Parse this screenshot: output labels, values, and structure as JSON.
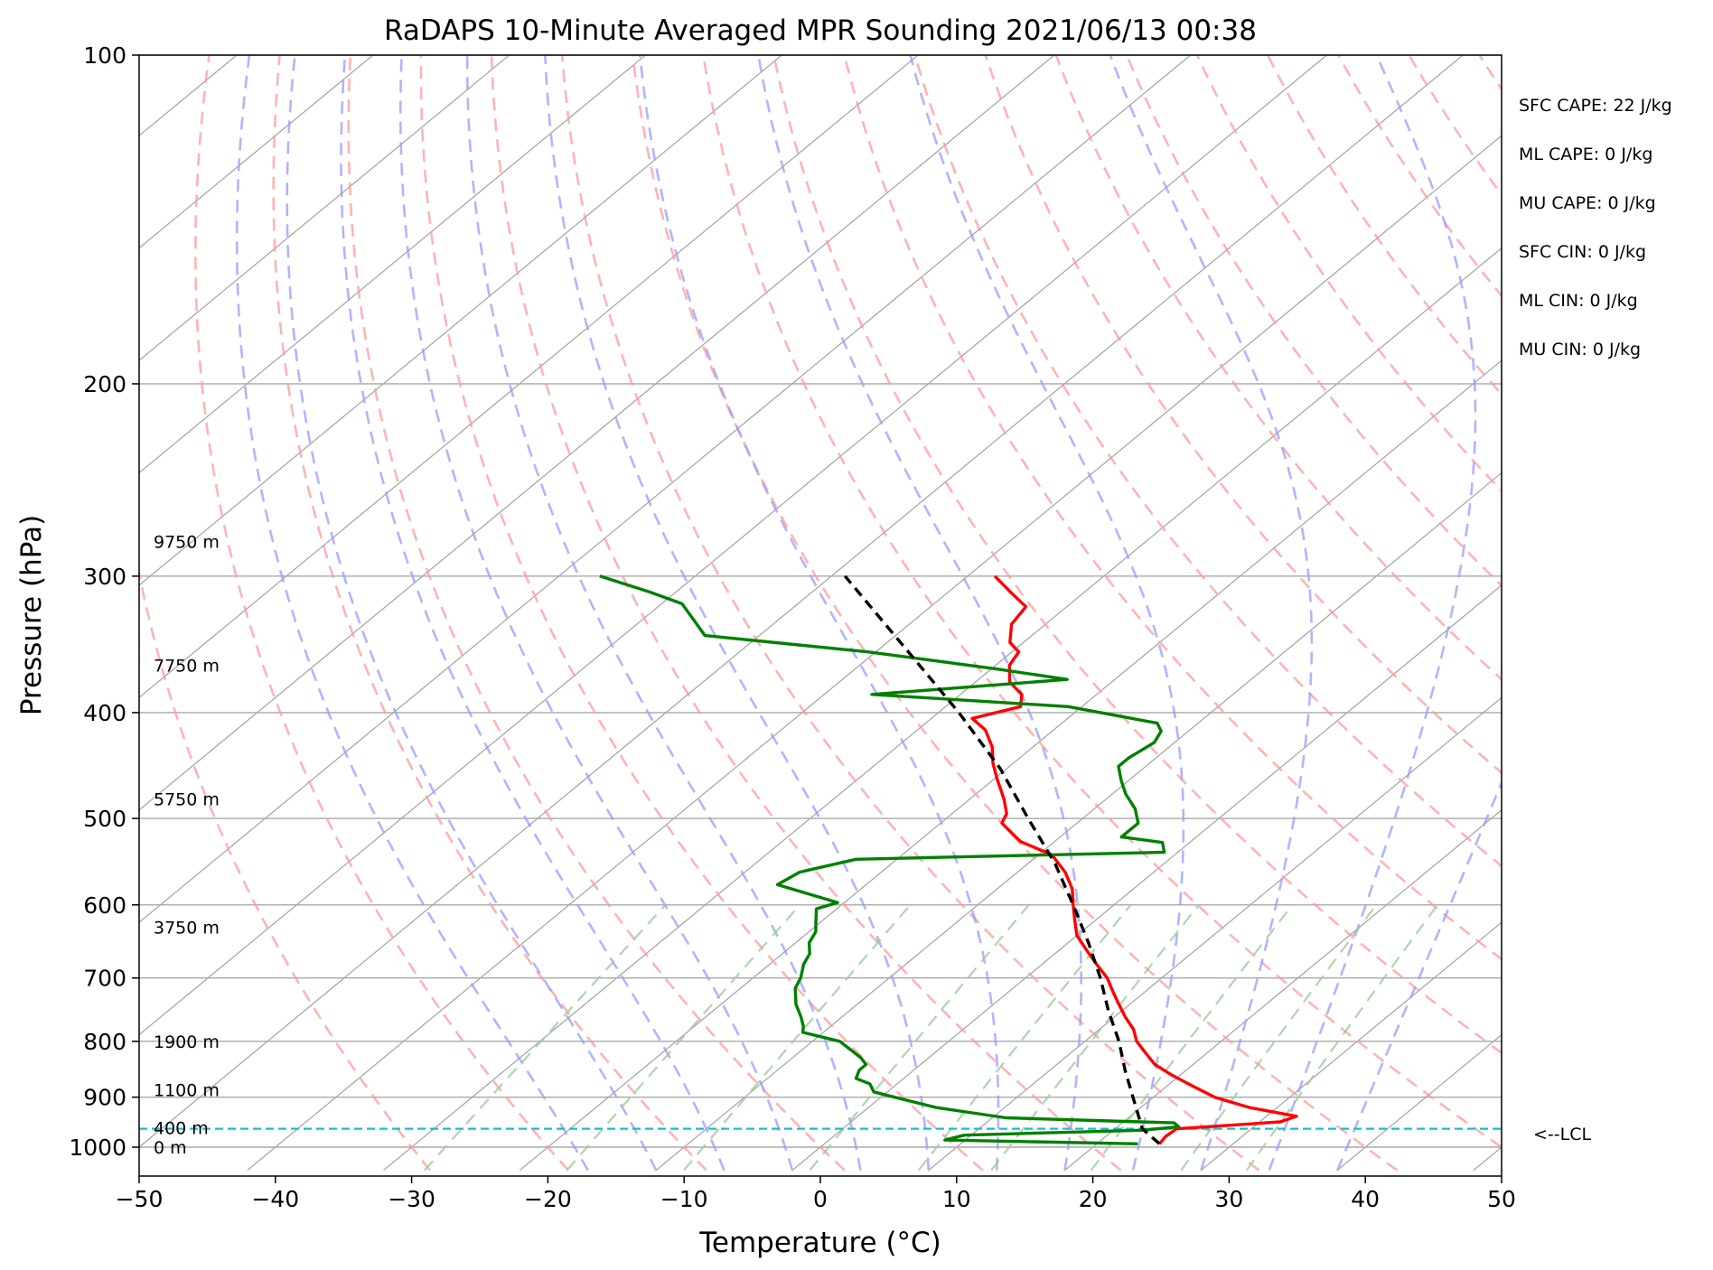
{
  "chart_data": {
    "type": "line",
    "title": "RaDAPS 10-Minute Averaged MPR Sounding 2021/06/13 00:38",
    "xlabel": "Temperature (°C)",
    "ylabel": "Pressure (hPa)",
    "xlim": [
      -50,
      50
    ],
    "ylim": [
      1050,
      100
    ],
    "y_scale": "log",
    "skew": true,
    "grid": true,
    "x_ticks": [
      -50,
      -40,
      -30,
      -20,
      -10,
      0,
      10,
      20,
      30,
      40,
      50
    ],
    "x_tick_labels": [
      "−50",
      "−40",
      "−30",
      "−20",
      "−10",
      "0",
      "10",
      "20",
      "30",
      "40",
      "50"
    ],
    "y_ticks": [
      100,
      200,
      300,
      400,
      500,
      600,
      700,
      800,
      900,
      1000
    ],
    "y_tick_labels": [
      "100",
      "200",
      "300",
      "400",
      "500",
      "600",
      "700",
      "800",
      "900",
      "1000"
    ],
    "height_labels": [
      {
        "text": "9750 m",
        "p": 279
      },
      {
        "text": "7750 m",
        "p": 362
      },
      {
        "text": "5750 m",
        "p": 480
      },
      {
        "text": "3750 m",
        "p": 629
      },
      {
        "text": "1900 m",
        "p": 800
      },
      {
        "text": "1100 m",
        "p": 886
      },
      {
        "text": "400 m",
        "p": 960
      },
      {
        "text": "0 m",
        "p": 1000
      }
    ],
    "lcl": {
      "p": 962,
      "label": "<--LCL",
      "color": "#17becf"
    },
    "colors": {
      "temperature": "#ff0000",
      "dewpoint": "#008000",
      "parcel": "#000000",
      "dry_adiabat": "#ff9a9a",
      "moist_adiabat": "#9a9aff",
      "mixing_ratio": "#99cc99",
      "grid": "#a8a8a8"
    },
    "series": [
      {
        "role": "temperature",
        "points": [
          {
            "p": 993,
            "t": 24.6
          },
          {
            "p": 978,
            "t": 24.4
          },
          {
            "p": 962,
            "t": 24.5
          },
          {
            "p": 948,
            "t": 31.5
          },
          {
            "p": 937,
            "t": 32.2
          },
          {
            "p": 920,
            "t": 28.0
          },
          {
            "p": 900,
            "t": 24.5
          },
          {
            "p": 880,
            "t": 22.0
          },
          {
            "p": 860,
            "t": 19.5
          },
          {
            "p": 840,
            "t": 17.2
          },
          {
            "p": 820,
            "t": 15.5
          },
          {
            "p": 800,
            "t": 13.8
          },
          {
            "p": 780,
            "t": 12.5
          },
          {
            "p": 760,
            "t": 10.8
          },
          {
            "p": 740,
            "t": 9.2
          },
          {
            "p": 720,
            "t": 7.6
          },
          {
            "p": 700,
            "t": 6.0
          },
          {
            "p": 680,
            "t": 4.0
          },
          {
            "p": 660,
            "t": 2.0
          },
          {
            "p": 640,
            "t": 0.0
          },
          {
            "p": 620,
            "t": -1.5
          },
          {
            "p": 600,
            "t": -3.0
          },
          {
            "p": 580,
            "t": -4.5
          },
          {
            "p": 560,
            "t": -6.5
          },
          {
            "p": 540,
            "t": -9.0
          },
          {
            "p": 525,
            "t": -12.5
          },
          {
            "p": 515,
            "t": -14.0
          },
          {
            "p": 505,
            "t": -15.5
          },
          {
            "p": 495,
            "t": -16.0
          },
          {
            "p": 480,
            "t": -17.5
          },
          {
            "p": 460,
            "t": -19.8
          },
          {
            "p": 445,
            "t": -21.5
          },
          {
            "p": 430,
            "t": -23.0
          },
          {
            "p": 415,
            "t": -25.0
          },
          {
            "p": 405,
            "t": -27.0
          },
          {
            "p": 395,
            "t": -24.5
          },
          {
            "p": 385,
            "t": -25.5
          },
          {
            "p": 375,
            "t": -27.5
          },
          {
            "p": 362,
            "t": -29.0
          },
          {
            "p": 352,
            "t": -29.5
          },
          {
            "p": 345,
            "t": -31.0
          },
          {
            "p": 332,
            "t": -32.5
          },
          {
            "p": 320,
            "t": -33.0
          },
          {
            "p": 310,
            "t": -35.5
          },
          {
            "p": 300,
            "t": -38.0
          }
        ]
      },
      {
        "role": "dewpoint",
        "points": [
          {
            "p": 993,
            "t": 23.0
          },
          {
            "p": 985,
            "t": 8.5
          },
          {
            "p": 975,
            "t": 9.5
          },
          {
            "p": 965,
            "t": 22.0
          },
          {
            "p": 958,
            "t": 24.5
          },
          {
            "p": 950,
            "t": 23.8
          },
          {
            "p": 940,
            "t": 11.0
          },
          {
            "p": 920,
            "t": 5.0
          },
          {
            "p": 900,
            "t": 1.0
          },
          {
            "p": 890,
            "t": -1.0
          },
          {
            "p": 875,
            "t": -2.0
          },
          {
            "p": 865,
            "t": -3.5
          },
          {
            "p": 850,
            "t": -4.0
          },
          {
            "p": 840,
            "t": -4.0
          },
          {
            "p": 828,
            "t": -5.0
          },
          {
            "p": 800,
            "t": -8.0
          },
          {
            "p": 785,
            "t": -11.5
          },
          {
            "p": 775,
            "t": -12.0
          },
          {
            "p": 760,
            "t": -13.0
          },
          {
            "p": 740,
            "t": -14.5
          },
          {
            "p": 715,
            "t": -16.0
          },
          {
            "p": 700,
            "t": -16.5
          },
          {
            "p": 680,
            "t": -17.5
          },
          {
            "p": 665,
            "t": -18.0
          },
          {
            "p": 650,
            "t": -19.0
          },
          {
            "p": 635,
            "t": -19.5
          },
          {
            "p": 620,
            "t": -20.5
          },
          {
            "p": 605,
            "t": -21.5
          },
          {
            "p": 597,
            "t": -20.5
          },
          {
            "p": 575,
            "t": -26.5
          },
          {
            "p": 560,
            "t": -26.0
          },
          {
            "p": 545,
            "t": -23.0
          },
          {
            "p": 537,
            "t": -1.0
          },
          {
            "p": 526,
            "t": -2.0
          },
          {
            "p": 520,
            "t": -5.5
          },
          {
            "p": 505,
            "t": -5.5
          },
          {
            "p": 490,
            "t": -7.0
          },
          {
            "p": 475,
            "t": -9.0
          },
          {
            "p": 462,
            "t": -10.5
          },
          {
            "p": 448,
            "t": -12.0
          },
          {
            "p": 440,
            "t": -12.0
          },
          {
            "p": 426,
            "t": -11.5
          },
          {
            "p": 416,
            "t": -12.0
          },
          {
            "p": 409,
            "t": -13.0
          },
          {
            "p": 395,
            "t": -21.0
          },
          {
            "p": 385,
            "t": -36.5
          },
          {
            "p": 373,
            "t": -23.5
          },
          {
            "p": 365,
            "t": -29.5
          },
          {
            "p": 352,
            "t": -40.5
          },
          {
            "p": 340,
            "t": -54.0
          },
          {
            "p": 330,
            "t": -56.0
          },
          {
            "p": 318,
            "t": -58.5
          },
          {
            "p": 310,
            "t": -62.0
          },
          {
            "p": 300,
            "t": -67.0
          }
        ]
      },
      {
        "role": "parcel",
        "points": [
          {
            "p": 993,
            "t": 24.6
          },
          {
            "p": 962,
            "t": 22.0
          },
          {
            "p": 900,
            "t": 18.5
          },
          {
            "p": 850,
            "t": 15.5
          },
          {
            "p": 800,
            "t": 12.5
          },
          {
            "p": 750,
            "t": 9.0
          },
          {
            "p": 700,
            "t": 5.5
          },
          {
            "p": 650,
            "t": 1.5
          },
          {
            "p": 600,
            "t": -3.0
          },
          {
            "p": 550,
            "t": -8.0
          },
          {
            "p": 500,
            "t": -14.0
          },
          {
            "p": 450,
            "t": -20.5
          },
          {
            "p": 400,
            "t": -28.5
          },
          {
            "p": 350,
            "t": -38.0
          },
          {
            "p": 300,
            "t": -49.0
          }
        ]
      }
    ]
  },
  "stats": [
    "SFC CAPE: 22 J/kg",
    "ML CAPE: 0 J/kg",
    "MU CAPE: 0 J/kg",
    "SFC CIN: 0 J/kg",
    "ML CIN: 0 J/kg",
    "MU CIN: 0 J/kg"
  ]
}
